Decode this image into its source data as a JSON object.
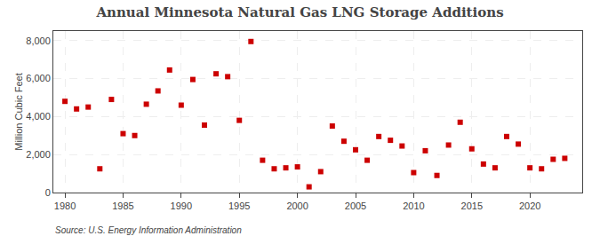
{
  "chart_data": {
    "type": "scatter",
    "title": "Annual Minnesota Natural Gas LNG Storage Additions",
    "ylabel": "Million Cubic Feet",
    "annotations": [
      "Source: U.S. Energy Information Administration"
    ],
    "x": [
      1980,
      1981,
      1982,
      1983,
      1984,
      1985,
      1986,
      1987,
      1988,
      1989,
      1990,
      1991,
      1992,
      1993,
      1994,
      1995,
      1996,
      1997,
      1998,
      1999,
      2000,
      2001,
      2002,
      2003,
      2004,
      2005,
      2006,
      2007,
      2008,
      2009,
      2010,
      2011,
      2012,
      2013,
      2014,
      2015,
      2016,
      2017,
      2018,
      2019,
      2020,
      2021,
      2022,
      2023
    ],
    "values": [
      4800,
      4400,
      4500,
      1250,
      4900,
      3100,
      3000,
      4650,
      5350,
      6450,
      4600,
      5950,
      3550,
      6250,
      6100,
      3800,
      7950,
      1700,
      1250,
      1300,
      1350,
      300,
      1100,
      3500,
      2700,
      2250,
      1700,
      2950,
      2750,
      2450,
      1050,
      2200,
      900,
      2500,
      3700,
      2300,
      1500,
      1300,
      2950,
      2550,
      1300,
      1250,
      1750,
      1800
    ],
    "color": "#cc0000",
    "marker": "square",
    "xlim": [
      1979,
      2024.5
    ],
    "xticks": [
      1980,
      1985,
      1990,
      1995,
      2000,
      2005,
      2010,
      2015,
      2020
    ],
    "ylim": [
      0,
      8500
    ],
    "yticks": [
      0,
      {
        "value": 2000,
        "label": "2,000"
      },
      {
        "value": 4000,
        "label": "4,000"
      },
      {
        "value": 6000,
        "label": "6,000"
      },
      {
        "value": 8000,
        "label": "8,000"
      }
    ],
    "grid": true
  }
}
